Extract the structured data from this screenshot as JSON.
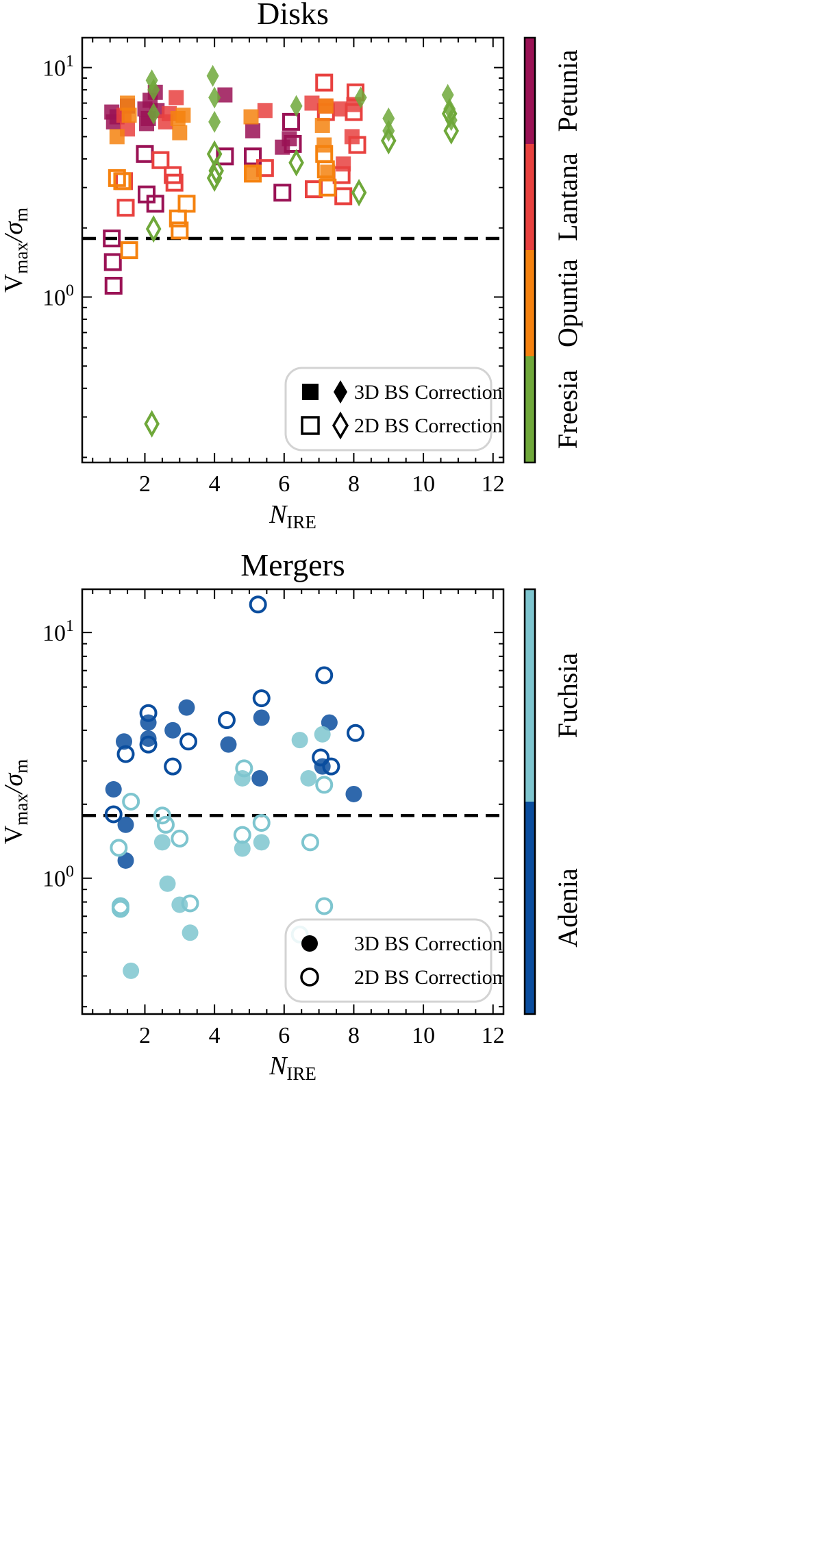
{
  "chart_data": [
    {
      "type": "scatter",
      "title": "Disks",
      "xlabel_main": "N",
      "xlabel_sub": "IRE",
      "ylabel_main": "V",
      "ylabel_sub1": "max",
      "ylabel_sep": "/σ",
      "ylabel_sub2": "m",
      "yscale": "log",
      "xlim": [
        0.2,
        12.3
      ],
      "ylim": [
        0.19,
        13.5
      ],
      "xticks": [
        2,
        4,
        6,
        8,
        10,
        12
      ],
      "yticks_major": [
        1,
        10
      ],
      "ytick_labels": [
        "10",
        "10"
      ],
      "ytick_exps": [
        "0",
        "1"
      ],
      "threshold": 1.8,
      "legend": {
        "position": "lower-right",
        "entries": [
          {
            "label": "3D BS Correction",
            "filled": true
          },
          {
            "label": "2D BS Correction",
            "filled": false
          }
        ]
      },
      "colorbar": [
        {
          "label": "Freesia",
          "color": "#6fa83a"
        },
        {
          "label": "Opuntia",
          "color": "#f5820f"
        },
        {
          "label": "Lantana",
          "color": "#e8413f"
        },
        {
          "label": "Petunia",
          "color": "#9a1255"
        }
      ],
      "series": [
        {
          "name": "Petunia 3D",
          "marker": "square",
          "filled": true,
          "color": "#9a1255",
          "x": [
            1.05,
            1.1,
            1.2,
            1.5,
            2.0,
            2.05,
            2.1,
            2.3,
            2.35,
            5.1,
            5.95,
            6.15,
            4.3,
            2.15
          ],
          "y": [
            6.4,
            5.8,
            6.1,
            6.8,
            6.6,
            5.7,
            6.0,
            7.8,
            6.5,
            5.3,
            4.5,
            4.9,
            7.6,
            7.2
          ]
        },
        {
          "name": "Petunia 2D",
          "marker": "square",
          "filled": false,
          "color": "#9a1255",
          "x": [
            1.05,
            1.08,
            1.1,
            2.0,
            2.05,
            2.3,
            4.3,
            5.1,
            5.95,
            6.2,
            6.25
          ],
          "y": [
            1.8,
            1.42,
            1.12,
            4.2,
            2.8,
            2.55,
            4.1,
            4.1,
            2.85,
            5.8,
            4.65
          ]
        },
        {
          "name": "Lantana 3D",
          "marker": "square",
          "filled": true,
          "color": "#e8413f",
          "x": [
            1.4,
            1.5,
            2.6,
            2.7,
            2.9,
            5.45,
            6.8,
            7.2,
            7.6,
            7.7,
            8.0,
            7.95
          ],
          "y": [
            6.2,
            5.4,
            5.8,
            6.3,
            7.4,
            6.5,
            7.0,
            6.8,
            6.6,
            3.8,
            6.9,
            5.0
          ]
        },
        {
          "name": "Lantana 2D",
          "marker": "square",
          "filled": false,
          "color": "#e8413f",
          "x": [
            1.45,
            1.4,
            2.45,
            2.8,
            2.85,
            5.45,
            6.85,
            7.15,
            7.2,
            7.65,
            7.7,
            8.0,
            8.05,
            8.1
          ],
          "y": [
            2.45,
            3.2,
            3.95,
            3.4,
            3.15,
            3.65,
            2.95,
            8.6,
            6.4,
            3.4,
            2.75,
            6.4,
            7.8,
            4.6
          ]
        },
        {
          "name": "Opuntia 3D",
          "marker": "square",
          "filled": true,
          "color": "#f5820f",
          "x": [
            1.2,
            1.5,
            1.55,
            2.95,
            3.0,
            3.1,
            5.05,
            5.1,
            7.1,
            7.15,
            7.2,
            7.25
          ],
          "y": [
            5.0,
            7.0,
            6.2,
            6.0,
            5.2,
            6.2,
            6.1,
            3.5,
            5.6,
            4.6,
            6.8,
            3.5
          ]
        },
        {
          "name": "Opuntia 2D",
          "marker": "square",
          "filled": false,
          "color": "#f5820f",
          "x": [
            1.2,
            1.35,
            1.55,
            2.95,
            3.0,
            3.2,
            5.1,
            7.15,
            7.2,
            7.25
          ],
          "y": [
            3.3,
            3.2,
            1.6,
            2.2,
            1.95,
            2.55,
            3.45,
            4.2,
            3.6,
            3.0
          ]
        },
        {
          "name": "Freesia 3D",
          "marker": "diamond",
          "filled": true,
          "color": "#6fa83a",
          "x": [
            2.2,
            2.25,
            2.25,
            3.95,
            4.0,
            4.0,
            6.35,
            8.2,
            9.0,
            9.0,
            10.7,
            10.75,
            10.8
          ],
          "y": [
            8.8,
            8.0,
            6.3,
            9.2,
            7.4,
            5.8,
            6.8,
            7.4,
            6.0,
            5.3,
            7.6,
            6.6,
            5.9
          ]
        },
        {
          "name": "Freesia 2D",
          "marker": "diamond",
          "filled": false,
          "color": "#6fa83a",
          "x": [
            2.25,
            2.2,
            4.0,
            4.0,
            4.05,
            6.35,
            8.15,
            9.0,
            10.75,
            10.8
          ],
          "y": [
            1.98,
            0.28,
            4.2,
            3.3,
            3.55,
            3.85,
            2.85,
            4.8,
            6.3,
            5.3
          ]
        }
      ]
    },
    {
      "type": "scatter",
      "title": "Mergers",
      "xlabel_main": "N",
      "xlabel_sub": "IRE",
      "ylabel_main": "V",
      "ylabel_sub1": "max",
      "ylabel_sep": "/σ",
      "ylabel_sub2": "m",
      "yscale": "log",
      "xlim": [
        0.2,
        12.3
      ],
      "ylim": [
        0.28,
        15.0
      ],
      "xticks": [
        2,
        4,
        6,
        8,
        10,
        12
      ],
      "yticks_major": [
        1,
        10
      ],
      "ytick_labels": [
        "10",
        "10"
      ],
      "ytick_exps": [
        "0",
        "1"
      ],
      "threshold": 1.8,
      "legend": {
        "position": "lower-right",
        "entries": [
          {
            "label": "3D BS Correction",
            "filled": true
          },
          {
            "label": "2D BS Correction",
            "filled": false
          }
        ]
      },
      "colorbar": [
        {
          "label": "Adenia",
          "color": "#0a4d9e"
        },
        {
          "label": "Fuchsia",
          "color": "#7ec5cf"
        }
      ],
      "series": [
        {
          "name": "Adenia 3D",
          "marker": "circle",
          "filled": true,
          "color": "#0a4d9e",
          "x": [
            1.1,
            1.4,
            1.45,
            1.45,
            2.1,
            2.1,
            2.8,
            3.2,
            4.4,
            5.3,
            5.35,
            7.1,
            7.3,
            8.0
          ],
          "y": [
            2.3,
            3.6,
            1.65,
            1.18,
            4.3,
            3.7,
            4.0,
            4.95,
            3.5,
            2.55,
            4.5,
            2.85,
            4.3,
            2.2
          ]
        },
        {
          "name": "Adenia 2D",
          "marker": "circle",
          "filled": false,
          "color": "#0a4d9e",
          "x": [
            1.1,
            1.45,
            2.1,
            2.1,
            2.8,
            3.25,
            4.35,
            5.25,
            5.35,
            7.05,
            7.15,
            7.35,
            8.05
          ],
          "y": [
            1.82,
            3.2,
            4.7,
            3.5,
            2.85,
            3.6,
            4.4,
            13.0,
            5.4,
            3.1,
            6.7,
            2.85,
            3.9
          ]
        },
        {
          "name": "Fuchsia 3D",
          "marker": "circle",
          "filled": true,
          "color": "#7ec5cf",
          "x": [
            1.6,
            2.5,
            2.65,
            3.0,
            3.3,
            4.8,
            4.8,
            5.35,
            6.45,
            6.7,
            7.1
          ],
          "y": [
            0.42,
            1.4,
            0.95,
            0.78,
            0.6,
            2.55,
            1.32,
            1.4,
            3.65,
            2.55,
            3.85
          ]
        },
        {
          "name": "Fuchsia 2D",
          "marker": "circle",
          "filled": false,
          "color": "#7ec5cf",
          "x": [
            1.25,
            1.3,
            1.3,
            1.6,
            2.5,
            2.6,
            3.0,
            3.3,
            4.8,
            4.85,
            5.35,
            6.45,
            6.75,
            7.15,
            7.15
          ],
          "y": [
            1.33,
            0.77,
            0.75,
            2.05,
            1.8,
            1.65,
            1.45,
            0.79,
            1.5,
            2.8,
            1.68,
            0.59,
            1.4,
            2.4,
            0.77
          ]
        }
      ]
    }
  ]
}
